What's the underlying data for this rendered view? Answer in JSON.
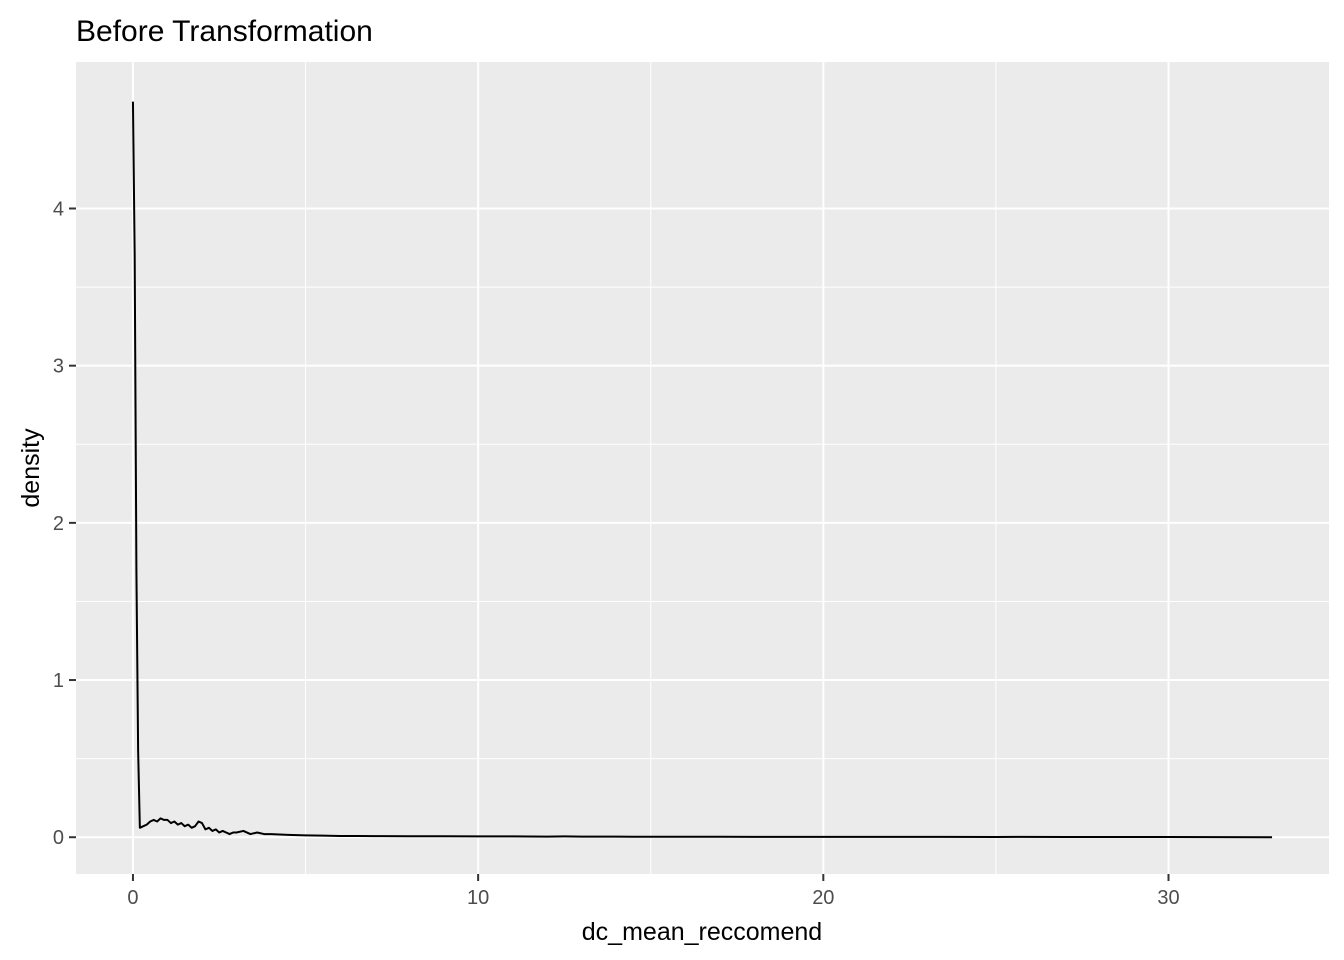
{
  "chart_data": {
    "type": "line",
    "title": "Before Transformation",
    "xlabel": "dc_mean_reccomend",
    "ylabel": "density",
    "xlim": [
      -1.65,
      34.65
    ],
    "ylim": [
      -0.234,
      4.932
    ],
    "x_ticks": [
      0,
      10,
      20,
      30
    ],
    "y_ticks": [
      0,
      1,
      2,
      3,
      4
    ],
    "x_tick_labels": [
      "0",
      "10",
      "20",
      "30"
    ],
    "y_tick_labels": [
      "0",
      "1",
      "2",
      "3",
      "4"
    ],
    "grid": true,
    "background": "#ebebeb",
    "grid_color": "#ffffff",
    "line_color": "#000000",
    "series": [
      {
        "x": [
          0.0,
          0.05,
          0.1,
          0.15,
          0.2,
          0.3,
          0.4,
          0.5,
          0.6,
          0.7,
          0.8,
          0.9,
          1.0,
          1.1,
          1.2,
          1.3,
          1.4,
          1.5,
          1.6,
          1.7,
          1.8,
          1.9,
          2.0,
          2.1,
          2.2,
          2.3,
          2.4,
          2.5,
          2.6,
          2.7,
          2.8,
          2.9,
          3.0,
          3.2,
          3.4,
          3.6,
          3.8,
          4.0,
          4.5,
          5.0,
          5.5,
          6.0,
          6.5,
          7.0,
          8.0,
          9.0,
          10.0,
          11.0,
          12.0,
          12.5,
          13.0,
          14.0,
          14.5,
          15.0,
          16.0,
          17.0,
          18.0,
          19.0,
          20.0,
          22.0,
          23.5,
          25.0,
          25.7,
          27.0,
          30.0,
          33.0
        ],
        "y": [
          4.68,
          3.7,
          1.7,
          0.55,
          0.06,
          0.07,
          0.08,
          0.1,
          0.11,
          0.1,
          0.12,
          0.11,
          0.11,
          0.09,
          0.1,
          0.08,
          0.09,
          0.07,
          0.08,
          0.06,
          0.07,
          0.1,
          0.09,
          0.05,
          0.06,
          0.04,
          0.05,
          0.03,
          0.04,
          0.03,
          0.02,
          0.03,
          0.03,
          0.04,
          0.02,
          0.03,
          0.02,
          0.02,
          0.015,
          0.012,
          0.01,
          0.008,
          0.008,
          0.007,
          0.006,
          0.006,
          0.005,
          0.005,
          0.004,
          0.005,
          0.004,
          0.004,
          0.003,
          0.003,
          0.003,
          0.003,
          0.002,
          0.002,
          0.002,
          0.002,
          0.002,
          0.001,
          0.002,
          0.001,
          0.001,
          0.0
        ]
      }
    ]
  }
}
